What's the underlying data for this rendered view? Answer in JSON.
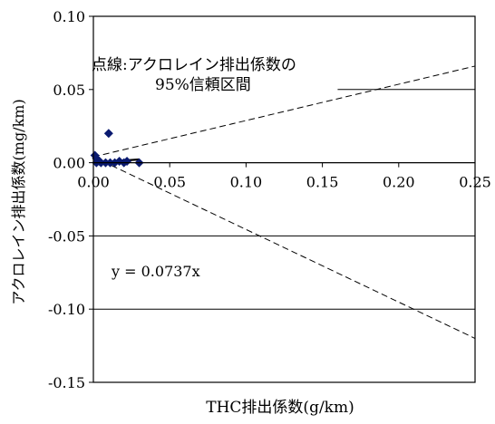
{
  "chart_data": {
    "type": "scatter",
    "xlabel": "THC排出係数(g/km)",
    "ylabel": "アクロレイン排出係数(mg/km)",
    "xlim": [
      0,
      0.25
    ],
    "ylim": [
      -0.15,
      0.1
    ],
    "x_ticks": [
      {
        "value": 0.0,
        "label": "0.00"
      },
      {
        "value": 0.05,
        "label": "0.05"
      },
      {
        "value": 0.1,
        "label": "0.10"
      },
      {
        "value": 0.15,
        "label": "0.15"
      },
      {
        "value": 0.2,
        "label": "0.20"
      },
      {
        "value": 0.25,
        "label": "0.25"
      }
    ],
    "y_ticks": [
      {
        "value": 0.1,
        "label": "0.10"
      },
      {
        "value": 0.05,
        "label": "0.05"
      },
      {
        "value": 0.0,
        "label": "0.00"
      },
      {
        "value": -0.05,
        "label": "-0.05"
      },
      {
        "value": -0.1,
        "label": "-0.10"
      },
      {
        "value": -0.15,
        "label": "-0.15"
      }
    ],
    "gridlines_y": [
      0.05,
      -0.05,
      -0.1
    ],
    "points": [
      {
        "x": 0.001,
        "y": 0.005
      },
      {
        "x": 0.002,
        "y": 0.003
      },
      {
        "x": 0.002,
        "y": 0.0
      },
      {
        "x": 0.004,
        "y": 0.001
      },
      {
        "x": 0.005,
        "y": 0.0
      },
      {
        "x": 0.008,
        "y": 0.0
      },
      {
        "x": 0.01,
        "y": 0.02
      },
      {
        "x": 0.011,
        "y": 0.0
      },
      {
        "x": 0.014,
        "y": 0.0
      },
      {
        "x": 0.017,
        "y": 0.001
      },
      {
        "x": 0.02,
        "y": 0.0
      },
      {
        "x": 0.022,
        "y": 0.001
      },
      {
        "x": 0.03,
        "y": 0.0
      }
    ],
    "regression": {
      "slope": 0.0737,
      "x_end": 0.03,
      "label": "y = 0.0737x"
    },
    "confidence_band": {
      "upper": [
        [
          0,
          0.004
        ],
        [
          0.25,
          0.066
        ]
      ],
      "lower": [
        [
          0,
          0.004
        ],
        [
          0.25,
          -0.12
        ]
      ]
    },
    "annotation_lines": [
      "点線:アクロレイン排出係数の",
      "95%信頼区間"
    ],
    "marker_color": "#0a1a70",
    "line_color": "#000000"
  }
}
